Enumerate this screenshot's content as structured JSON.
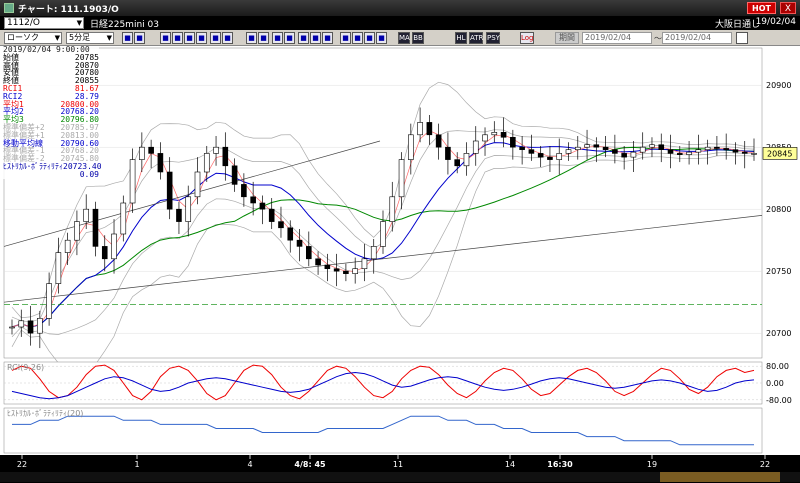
{
  "window": {
    "title": "チャート: 111.1903/O",
    "hot_label": "HOT",
    "close_label": "X"
  },
  "info": {
    "symbol": "1112/O",
    "instrument": "日経225mini 03",
    "session": "大阪日通し",
    "date": "19/02/04"
  },
  "toolbar": {
    "chart_type": "ローソク",
    "interval": "5分足",
    "period_label": "期間",
    "from_date": "2019/02/04",
    "to_date": "2019/02/04",
    "buttons": [
      "MA",
      "BB",
      "HL",
      "ATR",
      "PSY",
      "Log"
    ]
  },
  "legend": {
    "datetime": "2019/02/04 9:00:00",
    "rows": [
      {
        "label": "始値",
        "value": "20785",
        "color": "#000"
      },
      {
        "label": "高値",
        "value": "20870",
        "color": "#000"
      },
      {
        "label": "安値",
        "value": "20780",
        "color": "#000"
      },
      {
        "label": "終値",
        "value": "20855",
        "color": "#000"
      },
      {
        "label": "RCI1",
        "value": "81.67",
        "color": "#e00"
      },
      {
        "label": "RCI2",
        "value": "28.79",
        "color": "#00c"
      },
      {
        "label": "平均1",
        "value": "20800.00",
        "color": "#e00"
      },
      {
        "label": "平均2",
        "value": "20768.20",
        "color": "#00c"
      },
      {
        "label": "平均3",
        "value": "20796.80",
        "color": "#080"
      },
      {
        "label": "標準偏差+2",
        "value": "20785.97",
        "color": "#aaa"
      },
      {
        "label": "標準偏差+1",
        "value": "20813.00",
        "color": "#aaa"
      },
      {
        "label": "移動平均線",
        "value": "20790.60",
        "color": "#00c"
      },
      {
        "label": "標準偏差-1",
        "value": "20768.20",
        "color": "#aaa"
      },
      {
        "label": "標準偏差-2",
        "value": "20745.80",
        "color": "#aaa"
      },
      {
        "label": "ﾋｽﾄﾘｶﾙ･ﾎﾞﾗﾃｨﾘﾃｨ",
        "value": "20723.40",
        "color": "#00a"
      },
      {
        "label": "",
        "value": "0.09",
        "color": "#00a"
      }
    ]
  },
  "price_axis": {
    "ticks": [
      "20900",
      "20850",
      "20800",
      "20750",
      "20700"
    ],
    "current": "20845"
  },
  "rci_panel": {
    "title": "RCI(9,26)",
    "ticks": [
      "80.00",
      "0.00",
      "-80.00"
    ]
  },
  "hv_panel": {
    "title": "ﾋｽﾄﾘｶﾙ･ﾎﾞﾗﾃｨﾘﾃｨ(20)"
  },
  "time_axis": {
    "labels": [
      "22",
      "1",
      "4",
      "4/8: 45",
      "11",
      "14",
      "16:30",
      "19",
      "22"
    ]
  },
  "colors": {
    "up": "#fff",
    "down": "#000",
    "ma_short": "#e00",
    "ma_mid": "#00c",
    "ma_long": "#080",
    "band": "#aaa"
  },
  "chart_data": {
    "type": "candlestick",
    "close_series": [
      20705,
      20710,
      20700,
      20712,
      20740,
      20765,
      20775,
      20790,
      20800,
      20770,
      20760,
      20780,
      20805,
      20840,
      20850,
      20845,
      20830,
      20800,
      20790,
      20810,
      20830,
      20845,
      20850,
      20835,
      20820,
      20810,
      20805,
      20800,
      20790,
      20785,
      20775,
      20770,
      20760,
      20755,
      20752,
      20750,
      20748,
      20752,
      20760,
      20770,
      20790,
      20810,
      20840,
      20860,
      20870,
      20860,
      20850,
      20840,
      20835,
      20845,
      20855,
      20860,
      20862,
      20858,
      20850,
      20848,
      20845,
      20842,
      20840,
      20845,
      20848,
      20850,
      20852,
      20850,
      20848,
      20845,
      20842,
      20846,
      20850,
      20852,
      20848,
      20845,
      20844,
      20846,
      20848,
      20850,
      20849,
      20848,
      20846,
      20845,
      20845
    ],
    "rci_fast": [
      60,
      80,
      70,
      20,
      -40,
      -70,
      -60,
      -20,
      40,
      80,
      85,
      60,
      0,
      -60,
      -80,
      -40,
      30,
      70,
      80,
      60,
      10,
      -50,
      -80,
      -60,
      0,
      60,
      85,
      80,
      40,
      -20,
      -60,
      -75,
      -40,
      10,
      60,
      80,
      70,
      30,
      -20,
      -60,
      -70,
      -40,
      20,
      60,
      80,
      75,
      40,
      -10,
      -50,
      -70,
      -40,
      10,
      50,
      70,
      60,
      20,
      -30,
      -60,
      -50,
      -10,
      30,
      60,
      70,
      50,
      10,
      -40,
      -60,
      -40,
      0,
      40,
      70,
      60,
      20,
      -30,
      -50,
      -20,
      30,
      60,
      70,
      50,
      60
    ],
    "rci_slow": [
      -40,
      -50,
      -60,
      -70,
      -75,
      -70,
      -60,
      -40,
      -20,
      0,
      20,
      30,
      25,
      10,
      -10,
      -30,
      -40,
      -35,
      -20,
      0,
      10,
      20,
      25,
      20,
      10,
      0,
      -10,
      -20,
      -30,
      -40,
      -45,
      -40,
      -30,
      -10,
      10,
      30,
      45,
      50,
      45,
      30,
      10,
      -10,
      -20,
      -15,
      0,
      15,
      25,
      30,
      25,
      10,
      -5,
      -20,
      -30,
      -35,
      -30,
      -20,
      -5,
      10,
      20,
      25,
      20,
      10,
      0,
      -10,
      -20,
      -25,
      -20,
      -10,
      0,
      10,
      15,
      10,
      0,
      -15,
      -30,
      -40,
      -35,
      -20,
      0,
      10,
      15
    ],
    "hv": [
      0.14,
      0.14,
      0.14,
      0.15,
      0.15,
      0.15,
      0.16,
      0.16,
      0.16,
      0.16,
      0.16,
      0.16,
      0.15,
      0.15,
      0.15,
      0.15,
      0.14,
      0.14,
      0.14,
      0.14,
      0.14,
      0.14,
      0.13,
      0.13,
      0.13,
      0.13,
      0.13,
      0.12,
      0.12,
      0.12,
      0.12,
      0.12,
      0.12,
      0.12,
      0.13,
      0.13,
      0.13,
      0.13,
      0.13,
      0.13,
      0.13,
      0.14,
      0.15,
      0.16,
      0.16,
      0.16,
      0.16,
      0.15,
      0.15,
      0.15,
      0.14,
      0.14,
      0.14,
      0.13,
      0.13,
      0.13,
      0.12,
      0.12,
      0.12,
      0.12,
      0.12,
      0.12,
      0.11,
      0.11,
      0.11,
      0.11,
      0.1,
      0.1,
      0.1,
      0.1,
      0.1,
      0.1,
      0.09,
      0.09,
      0.09,
      0.09,
      0.09,
      0.09,
      0.09,
      0.09,
      0.09
    ],
    "ylim": [
      20680,
      20930
    ],
    "grid": true
  }
}
